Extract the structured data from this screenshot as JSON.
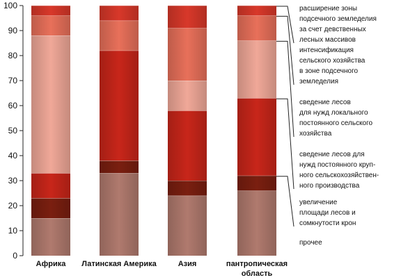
{
  "chart_data": {
    "type": "bar",
    "stacked": true,
    "categories": [
      "Африка",
      "Латинская Америка",
      "Азия",
      "пантропическая\nобласть"
    ],
    "yticks": [
      0,
      10,
      20,
      30,
      40,
      50,
      60,
      70,
      80,
      90,
      100
    ],
    "ylim": [
      0,
      100
    ],
    "grid": false,
    "legend_position": "right",
    "series": [
      {
        "name": "прочее",
        "color": "#b07a6e",
        "values": [
          15,
          33,
          24,
          26
        ]
      },
      {
        "name": "увеличение\nплощади лесов и\nсомкнутости крон",
        "color": "#7a1f10",
        "values": [
          8,
          5,
          6,
          6
        ]
      },
      {
        "name": "сведение лесов для\nнужд постоянного круп-\nного сельскохозяйствен-\nного производства",
        "color": "#c8261a",
        "values": [
          10,
          44,
          28,
          31
        ]
      },
      {
        "name": "сведение лесов\nдля нужд локального\nпостоянного сельского\nхозяйства",
        "color": "#f0a898",
        "values": [
          55,
          0,
          12,
          23
        ]
      },
      {
        "name": "интенсификация\nсельского хозяйства\nв зоне подсечного\nземледелия",
        "color": "#e8705a",
        "values": [
          8,
          12,
          21,
          10
        ]
      },
      {
        "name": "расширение зоны\nподсечного земледелия\nза счет девственных\nлесных массивов",
        "color": "#d8382a",
        "values": [
          4,
          6,
          9,
          4
        ]
      }
    ]
  }
}
